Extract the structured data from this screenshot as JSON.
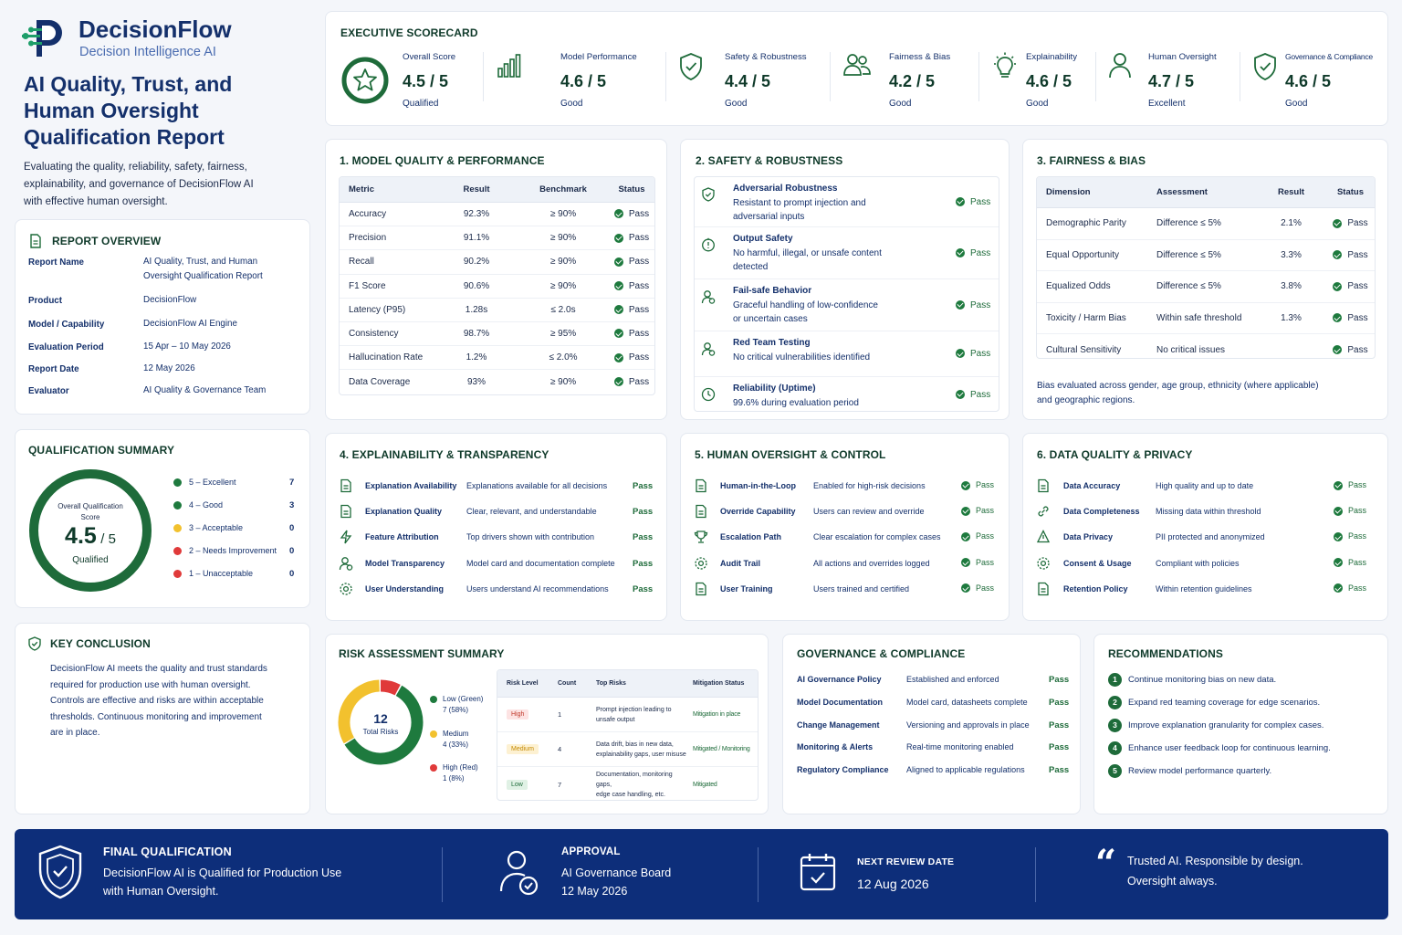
{
  "brand": {
    "name": "DecisionFlow",
    "tagline": "Decision Intelligence AI"
  },
  "report_title": [
    "AI Quality, Trust, and",
    "Human Oversight",
    "Qualification Report"
  ],
  "intro": [
    "Evaluating the quality, reliability, safety, fairness,",
    "explainability, and governance of DecisionFlow AI",
    "with effective human oversight."
  ],
  "overview": {
    "title": "REPORT OVERVIEW",
    "rows": [
      {
        "k": "Report Name",
        "v": [
          "AI Quality, Trust, and Human",
          "Oversight Qualification Report"
        ]
      },
      {
        "k": "Product",
        "v": [
          "DecisionFlow"
        ]
      },
      {
        "k": "Model / Capability",
        "v": [
          "DecisionFlow AI Engine"
        ]
      },
      {
        "k": "Evaluation Period",
        "v": [
          "15 Apr – 10 May 2026"
        ]
      },
      {
        "k": "Report Date",
        "v": [
          "12 May 2026"
        ]
      },
      {
        "k": "Evaluator",
        "v": [
          "AI Quality & Governance Team"
        ]
      }
    ]
  },
  "qual_summary": {
    "title": "QUALIFICATION SUMMARY",
    "ring_label": [
      "Overall Qualification",
      "Score"
    ],
    "score": "4.5",
    "of": "/ 5",
    "status": "Qualified",
    "score_fraction": 0.9,
    "legend": [
      {
        "label": "5 – Excellent",
        "count": "7",
        "color": "#1e7a3e"
      },
      {
        "label": "4 – Good",
        "count": "3",
        "color": "#1e7a3e"
      },
      {
        "label": "3 – Acceptable",
        "count": "0",
        "color": "#f2c12e"
      },
      {
        "label": "2 – Needs Improvement",
        "count": "0",
        "color": "#e03a3a"
      },
      {
        "label": "1 – Unacceptable",
        "count": "0",
        "color": "#e03a3a"
      }
    ]
  },
  "conclusion": {
    "title": "KEY CONCLUSION",
    "lines": [
      "DecisionFlow AI meets the quality and trust standards",
      "required for production use with human oversight.",
      "Controls are effective and risks are within acceptable",
      "thresholds. Continuous monitoring and improvement",
      "are in place."
    ]
  },
  "scorecard": {
    "title": "EXECUTIVE SCORECARD",
    "items": [
      {
        "label": "Overall Score",
        "score": "4.5 / 5",
        "rating": "Qualified",
        "icon": "star-badge-icon"
      },
      {
        "label": "Model Performance",
        "score": "4.6 / 5",
        "rating": "Good",
        "icon": "bar-chart-icon"
      },
      {
        "label": "Safety & Robustness",
        "score": "4.4 / 5",
        "rating": "Good",
        "icon": "shield-check-icon"
      },
      {
        "label": "Fairness & Bias",
        "score": "4.2 / 5",
        "rating": "Good",
        "icon": "people-icon"
      },
      {
        "label": "Explainability",
        "score": "4.6 / 5",
        "rating": "Good",
        "icon": "lightbulb-icon"
      },
      {
        "label": "Human Oversight",
        "score": "4.7 / 5",
        "rating": "Excellent",
        "icon": "person-icon"
      },
      {
        "label": "Governance & Compliance",
        "score": "4.6 / 5",
        "rating": "Good",
        "icon": "shield-check-icon"
      }
    ]
  },
  "model_quality": {
    "title": "1. MODEL QUALITY & PERFORMANCE",
    "headers": [
      "Metric",
      "Result",
      "Benchmark",
      "Status"
    ],
    "rows": [
      [
        "Accuracy",
        "92.3%",
        "≥ 90%",
        "Pass"
      ],
      [
        "Precision",
        "91.1%",
        "≥ 90%",
        "Pass"
      ],
      [
        "Recall",
        "90.2%",
        "≥ 90%",
        "Pass"
      ],
      [
        "F1 Score",
        "90.6%",
        "≥ 90%",
        "Pass"
      ],
      [
        "Latency (P95)",
        "1.28s",
        "≤ 2.0s",
        "Pass"
      ],
      [
        "Consistency",
        "98.7%",
        "≥ 95%",
        "Pass"
      ],
      [
        "Hallucination Rate",
        "1.2%",
        "≤ 2.0%",
        "Pass"
      ],
      [
        "Data Coverage",
        "93%",
        "≥ 90%",
        "Pass"
      ]
    ]
  },
  "safety": {
    "title": "2. SAFETY & ROBUSTNESS",
    "rows": [
      {
        "t": "Adversarial Robustness",
        "d": [
          "Resistant to prompt injection and",
          "adversarial inputs"
        ],
        "s": "Pass"
      },
      {
        "t": "Output Safety",
        "d": [
          "No harmful, illegal, or unsafe content",
          "detected"
        ],
        "s": "Pass"
      },
      {
        "t": "Fail-safe Behavior",
        "d": [
          "Graceful handling of low-confidence",
          "or uncertain cases"
        ],
        "s": "Pass"
      },
      {
        "t": "Red Team Testing",
        "d": [
          "No critical vulnerabilities identified"
        ],
        "s": "Pass"
      },
      {
        "t": "Reliability (Uptime)",
        "d": [
          "99.6% during evaluation period"
        ],
        "s": "Pass"
      }
    ]
  },
  "fairness": {
    "title": "3. FAIRNESS & BIAS",
    "headers": [
      "Dimension",
      "Assessment",
      "Result",
      "Status"
    ],
    "rows": [
      [
        "Demographic Parity",
        "Difference ≤ 5%",
        "2.1%",
        "Pass"
      ],
      [
        "Equal Opportunity",
        "Difference ≤ 5%",
        "3.3%",
        "Pass"
      ],
      [
        "Equalized Odds",
        "Difference ≤ 5%",
        "3.8%",
        "Pass"
      ],
      [
        "Toxicity / Harm Bias",
        "Within safe threshold",
        "1.3%",
        "Pass"
      ],
      [
        "Cultural Sensitivity",
        "No critical issues",
        "",
        "Pass"
      ]
    ],
    "note": [
      "Bias evaluated across gender, age group, ethnicity (where applicable)",
      "and geographic regions."
    ]
  },
  "explainability": {
    "title": "4. EXPLAINABILITY & TRANSPARENCY",
    "rows": [
      [
        "Explanation Availability",
        "Explanations available for all decisions",
        "Pass"
      ],
      [
        "Explanation Quality",
        "Clear, relevant, and understandable",
        "Pass"
      ],
      [
        "Feature Attribution",
        "Top drivers shown with contribution",
        "Pass"
      ],
      [
        "Model Transparency",
        "Model card and documentation complete",
        "Pass"
      ],
      [
        "User Understanding",
        "Users understand AI recommendations",
        "Pass"
      ]
    ]
  },
  "oversight": {
    "title": "5. HUMAN OVERSIGHT & CONTROL",
    "rows": [
      [
        "Human-in-the-Loop",
        "Enabled for high-risk decisions",
        "Pass"
      ],
      [
        "Override Capability",
        "Users can review and override",
        "Pass"
      ],
      [
        "Escalation Path",
        "Clear escalation for complex cases",
        "Pass"
      ],
      [
        "Audit Trail",
        "All actions and overrides logged",
        "Pass"
      ],
      [
        "User Training",
        "Users trained and certified",
        "Pass"
      ]
    ]
  },
  "data_quality": {
    "title": "6. DATA QUALITY & PRIVACY",
    "rows": [
      [
        "Data Accuracy",
        "High quality and up to date",
        "Pass"
      ],
      [
        "Data Completeness",
        "Missing data within threshold",
        "Pass"
      ],
      [
        "Data Privacy",
        "PII protected and anonymized",
        "Pass"
      ],
      [
        "Consent & Usage",
        "Compliant with policies",
        "Pass"
      ],
      [
        "Retention Policy",
        "Within retention guidelines",
        "Pass"
      ]
    ]
  },
  "risk": {
    "title": "RISK ASSESSMENT SUMMARY",
    "total": "12",
    "total_label": "Total Risks",
    "donut": [
      {
        "value": 7,
        "color": "#1e7a3e"
      },
      {
        "value": 4,
        "color": "#f2c12e"
      },
      {
        "value": 1,
        "color": "#e03a3a"
      }
    ],
    "legend": [
      {
        "l1": "Low (Green)",
        "l2": "7 (58%)",
        "color": "#1e7a3e"
      },
      {
        "l1": "Medium",
        "l2": "4 (33%)",
        "color": "#f2c12e"
      },
      {
        "l1": "High (Red)",
        "l2": "1 (8%)",
        "color": "#e03a3a"
      }
    ],
    "headers": [
      "Risk Level",
      "Count",
      "Top Risks",
      "Mitigation Status"
    ],
    "rows": [
      {
        "level": "High",
        "count": "1",
        "risks": [
          "Prompt injection leading to",
          "unsafe output"
        ],
        "mit": "Mitigation in place",
        "bg": "#fde3e3",
        "fg": "#c0392b"
      },
      {
        "level": "Medium",
        "count": "4",
        "risks": [
          "Data drift, bias in new data,",
          "explainability gaps, user misuse"
        ],
        "mit": "Mitigated / Monitoring",
        "bg": "#fdf1d2",
        "fg": "#c58a00"
      },
      {
        "level": "Low",
        "count": "7",
        "risks": [
          "Documentation, monitoring gaps,",
          "edge case handling, etc."
        ],
        "mit": "Mitigated",
        "bg": "#e0f1e5",
        "fg": "#1e6b3a"
      }
    ]
  },
  "governance": {
    "title": "GOVERNANCE & COMPLIANCE",
    "rows": [
      [
        "AI Governance Policy",
        "Established and enforced",
        "Pass"
      ],
      [
        "Model Documentation",
        "Model card, datasheets complete",
        "Pass"
      ],
      [
        "Change Management",
        "Versioning and approvals in place",
        "Pass"
      ],
      [
        "Monitoring & Alerts",
        "Real-time monitoring enabled",
        "Pass"
      ],
      [
        "Regulatory Compliance",
        "Aligned to applicable regulations",
        "Pass"
      ]
    ]
  },
  "recommendations": {
    "title": "RECOMMENDATIONS",
    "items": [
      "Continue monitoring bias on new data.",
      "Expand red teaming coverage for edge scenarios.",
      "Improve explanation granularity for complex cases.",
      "Enhance user feedback loop for continuous learning.",
      "Review model performance quarterly."
    ]
  },
  "footer": {
    "final_title": "FINAL QUALIFICATION",
    "final_lines": [
      "DecisionFlow AI is Qualified for Production Use",
      "with Human Oversight."
    ],
    "approval_title": "APPROVAL",
    "approval_lines": [
      "AI Governance Board",
      "12 May 2026"
    ],
    "review_title": "NEXT REVIEW DATE",
    "review_date": "12 Aug 2026",
    "quote_lines": [
      "Trusted AI.  Responsible by design.",
      "Oversight always."
    ]
  }
}
